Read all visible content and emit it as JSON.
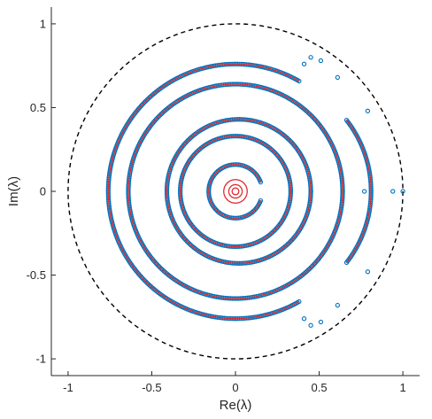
{
  "chart_data": {
    "type": "scatter",
    "title": "",
    "xlabel": "Re(λ)",
    "ylabel": "Im(λ)",
    "xlim": [
      -1.1,
      1.1
    ],
    "ylim": [
      -1.1,
      1.1
    ],
    "aspect": "equal",
    "box": "left and bottom axes only",
    "x_ticks": [
      -1,
      -0.5,
      0,
      0.5,
      1
    ],
    "x_tick_labels": [
      "-1",
      "-0.5",
      "0",
      "0.5",
      "1"
    ],
    "y_ticks": [
      -1,
      -0.5,
      0,
      0.5,
      1
    ],
    "y_tick_labels": [
      "-1",
      "-0.5",
      "0",
      "0.5",
      "1"
    ],
    "reference": {
      "name": "unit circle",
      "style": "dashed",
      "color": "#000000",
      "radius": 1
    },
    "series": [
      {
        "style": "markers",
        "marker": "open circle",
        "color": "#0072BD",
        "curves": [
          {
            "shape": "circle",
            "center": [
              0.0,
              0.0
            ],
            "radius": 0.16,
            "theta_range_deg": [
              20,
              340
            ]
          },
          {
            "shape": "circle",
            "center": [
              0.0,
              0.0
            ],
            "radius": 0.33,
            "theta_range_deg": [
              0,
              360
            ]
          },
          {
            "shape": "circle",
            "center": [
              0.02,
              0.0
            ],
            "radius": 0.43,
            "theta_range_deg": [
              0,
              360
            ]
          },
          {
            "shape": "circle",
            "center": [
              0.0,
              0.0
            ],
            "radius": 0.64,
            "theta_range_deg": [
              0,
              360
            ]
          },
          {
            "shape": "arc",
            "center": [
              0.0,
              0.0
            ],
            "radius": 0.76,
            "theta_range_deg": [
              60,
              300
            ]
          },
          {
            "shape": "arc",
            "center": [
              0.12,
              0.0
            ],
            "radius": 0.69,
            "theta_range_deg": [
              -38,
              38
            ]
          }
        ],
        "isolated_points": [
          [
            0.41,
            0.76
          ],
          [
            0.45,
            0.8
          ],
          [
            0.51,
            0.78
          ],
          [
            0.61,
            0.68
          ],
          [
            0.79,
            0.48
          ],
          [
            0.77,
            0.0
          ],
          [
            0.94,
            0.0
          ],
          [
            1.0,
            0.0
          ],
          [
            0.41,
            -0.76
          ],
          [
            0.45,
            -0.8
          ],
          [
            0.51,
            -0.78
          ],
          [
            0.61,
            -0.68
          ],
          [
            0.79,
            -0.48
          ]
        ]
      },
      {
        "style": "line",
        "color": "#E0282E",
        "curves": [
          {
            "shape": "circle",
            "center": [
              0.0,
              0.0
            ],
            "radius": 0.02,
            "theta_range_deg": [
              0,
              360
            ]
          },
          {
            "shape": "circle",
            "center": [
              0.0,
              0.0
            ],
            "radius": 0.04,
            "theta_range_deg": [
              0,
              360
            ]
          },
          {
            "shape": "circle",
            "center": [
              0.0,
              0.0
            ],
            "radius": 0.07,
            "theta_range_deg": [
              0,
              360
            ]
          },
          {
            "shape": "circle",
            "center": [
              0.0,
              0.0
            ],
            "radius": 0.16,
            "theta_range_deg": [
              20,
              340
            ]
          },
          {
            "shape": "circle",
            "center": [
              0.0,
              0.0
            ],
            "radius": 0.33,
            "theta_range_deg": [
              0,
              360
            ]
          },
          {
            "shape": "circle",
            "center": [
              0.02,
              0.0
            ],
            "radius": 0.43,
            "theta_range_deg": [
              0,
              360
            ]
          },
          {
            "shape": "circle",
            "center": [
              0.0,
              0.0
            ],
            "radius": 0.64,
            "theta_range_deg": [
              0,
              360
            ]
          },
          {
            "shape": "arc",
            "center": [
              0.0,
              0.0
            ],
            "radius": 0.76,
            "theta_range_deg": [
              60,
              300
            ]
          },
          {
            "shape": "arc",
            "center": [
              0.12,
              0.0
            ],
            "radius": 0.69,
            "theta_range_deg": [
              -38,
              38
            ]
          }
        ]
      }
    ]
  }
}
